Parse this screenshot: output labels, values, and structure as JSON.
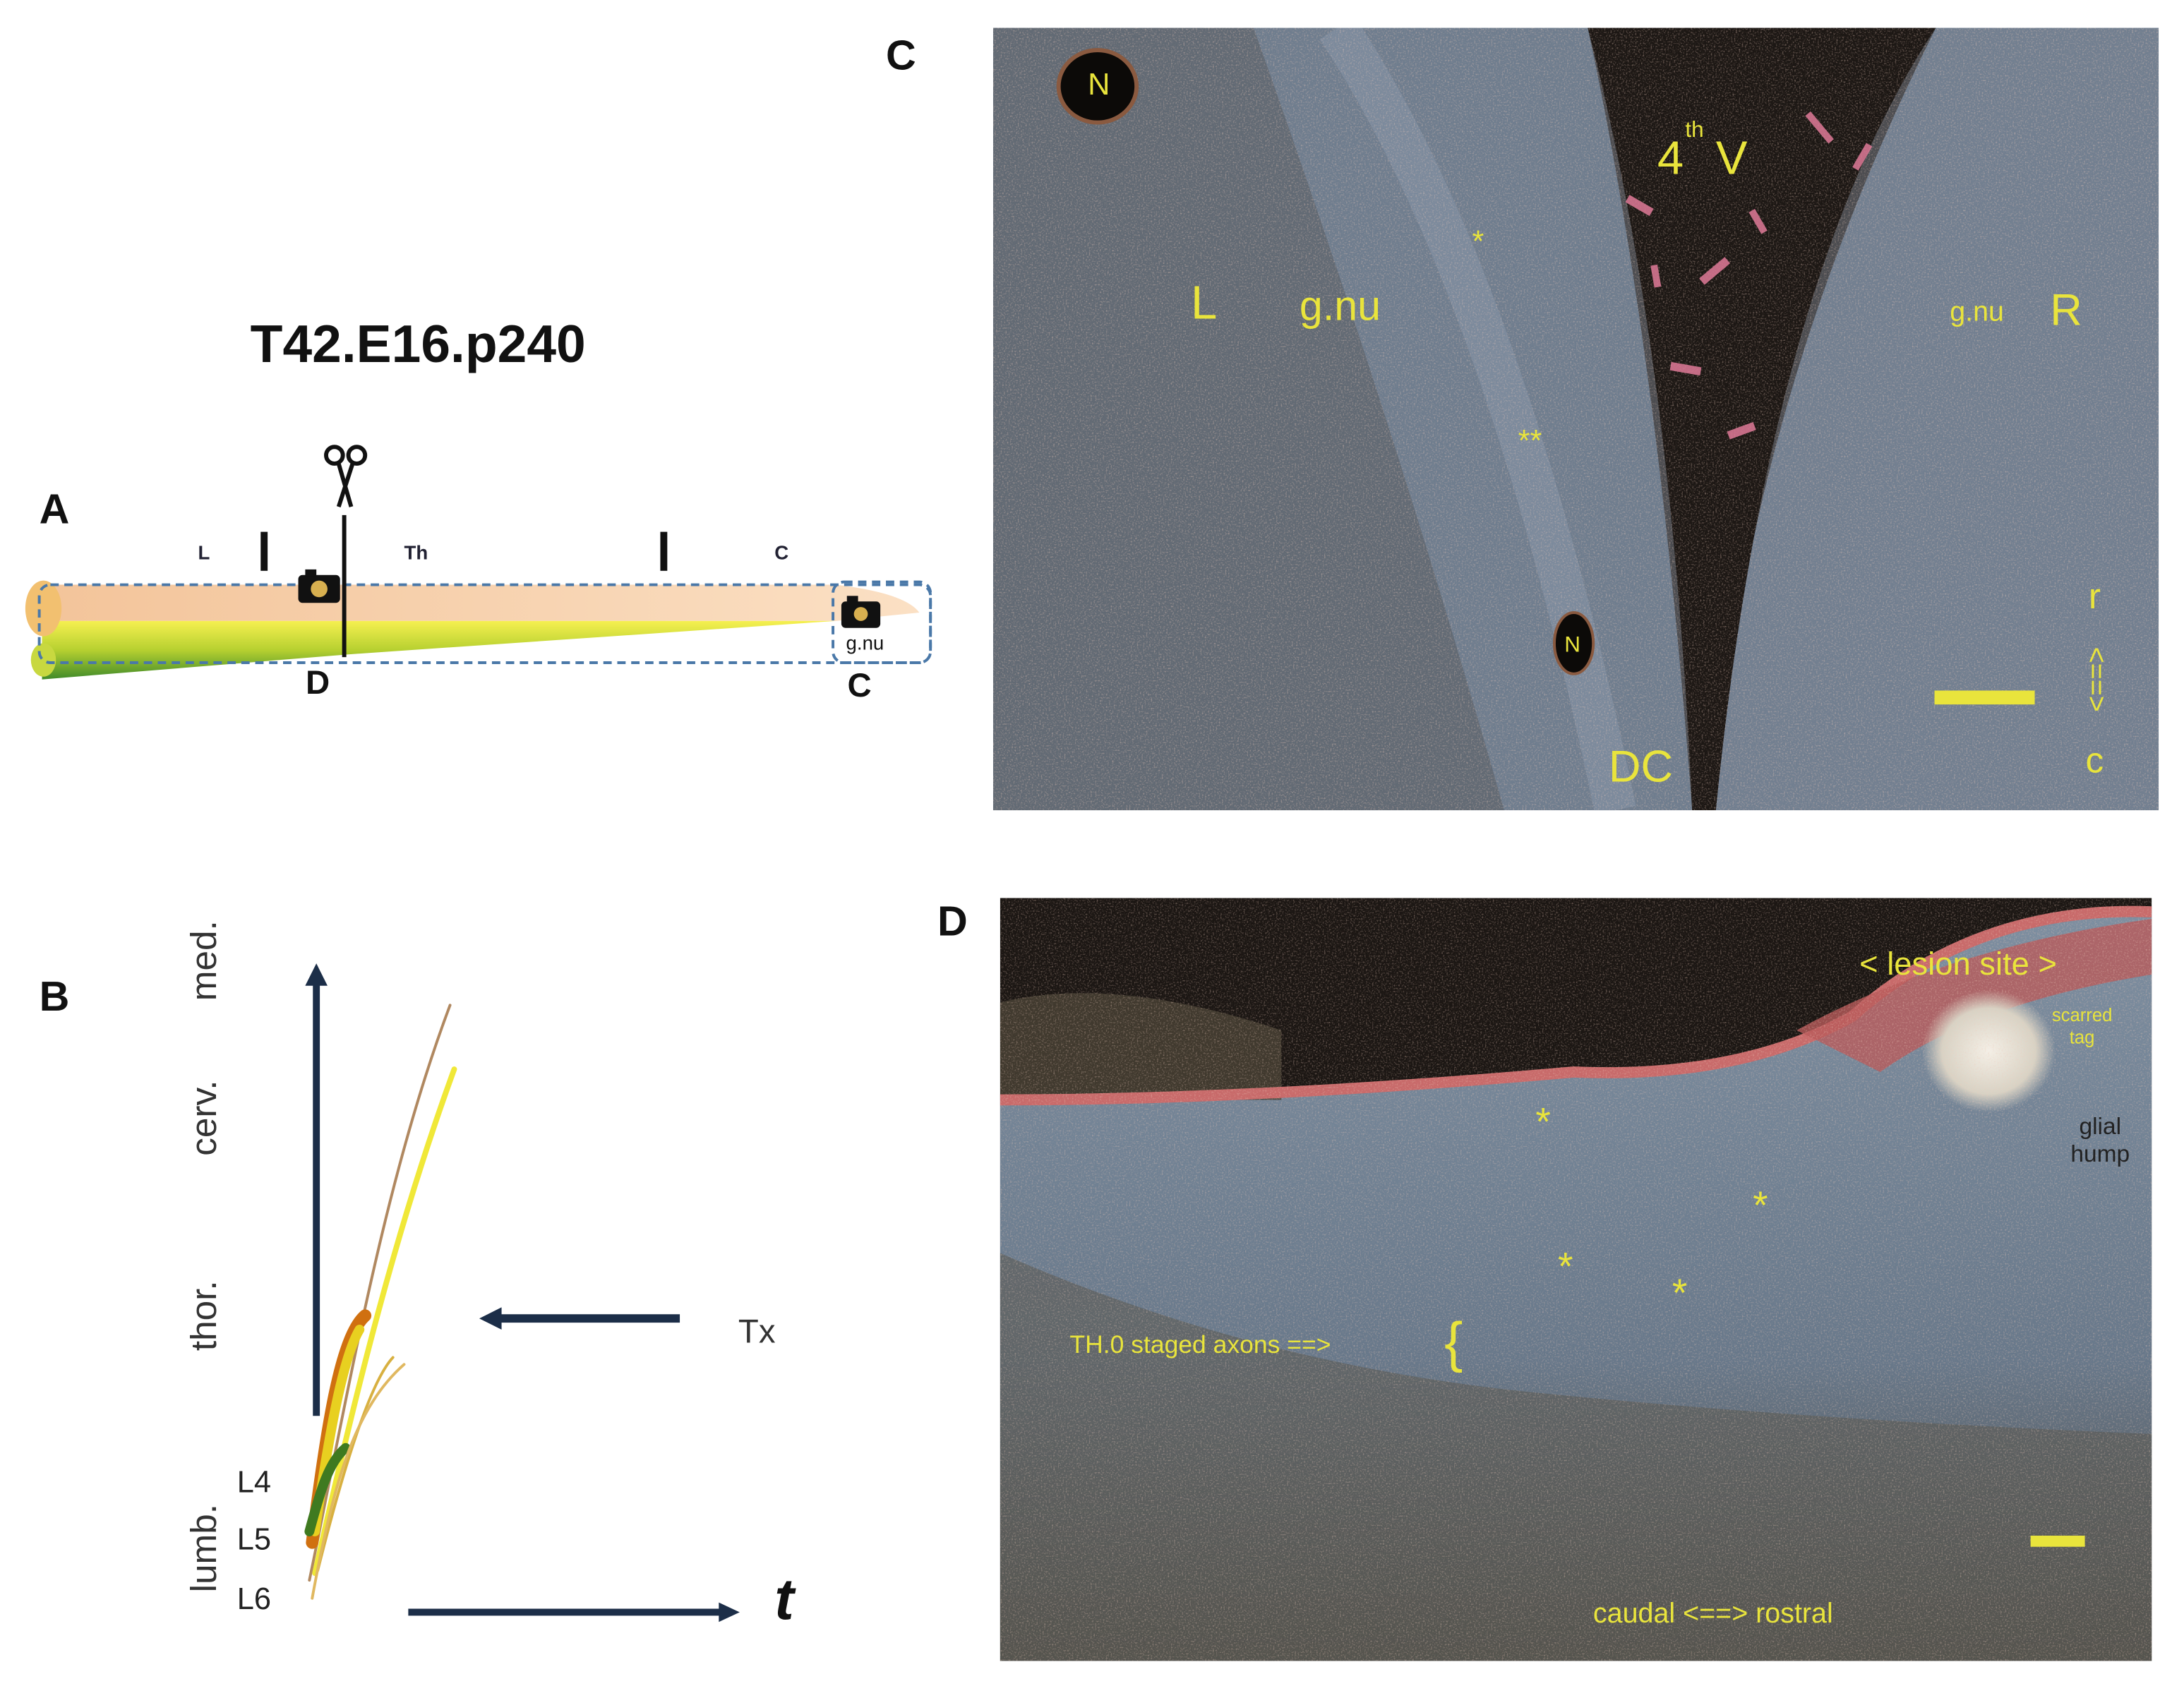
{
  "panel_a": {
    "label": "A",
    "title": "T42.E16.p240",
    "segments": [
      "L",
      "Th",
      "C"
    ],
    "cut_label": "D",
    "image_label": "C",
    "box_label": "g.nu"
  },
  "panel_b": {
    "label": "B",
    "axis_labels": [
      "lumb.",
      "thor.",
      "cerv.",
      "med."
    ],
    "levels": [
      "L4",
      "L5",
      "L6"
    ],
    "arrow_label": "Tx",
    "time_label": "t"
  },
  "panel_c": {
    "label": "C",
    "nucleus_labels": [
      "N",
      "N"
    ],
    "ventricle": {
      "number": "4",
      "superscript": "th",
      "letter": "V"
    },
    "side_labels": [
      "L",
      "R"
    ],
    "nucleus_names": [
      "g.nu",
      "g.nu"
    ],
    "asterisks": [
      "*",
      "**"
    ],
    "tract": "DC",
    "orientation": [
      "r",
      "<==>",
      "c"
    ]
  },
  "panel_d": {
    "label": "D",
    "lesion": "< lesion site >",
    "scar": [
      "scarred",
      "tag"
    ],
    "hump": [
      "glial",
      "hump"
    ],
    "asterisks": [
      "*",
      "*",
      "*",
      "*"
    ],
    "axons": "TH.0 staged axons ==>",
    "brace": "{",
    "orientation": "caudal <==> rostral"
  }
}
